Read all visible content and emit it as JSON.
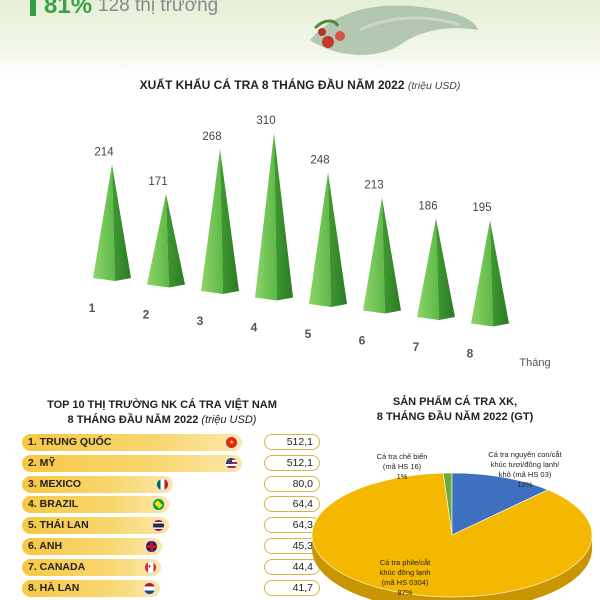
{
  "header": {
    "stat_percent": "81%",
    "stat_text": "128 thị trường"
  },
  "chart_data": [
    {
      "type": "bar",
      "title": "XUẤT KHẨU CÁ TRA 8 THÁNG ĐẦU NĂM 2022",
      "title_unit": "(triệu USD)",
      "categories": [
        "1",
        "2",
        "3",
        "4",
        "5",
        "6",
        "7",
        "8"
      ],
      "values": [
        214,
        171,
        268,
        310,
        248,
        213,
        186,
        195
      ],
      "xlabel": "Tháng",
      "ylabel": "",
      "ylim": [
        0,
        320
      ],
      "grid": false,
      "color": "#5fb84a"
    },
    {
      "type": "bar",
      "title": "TOP 10 THỊ TRƯỜNG NK CÁ TRA VIỆT NAM",
      "title_line2": "8 THÁNG ĐẦU NĂM 2022",
      "title_unit": "(triệu USD)",
      "categories": [
        "1. TRUNG QUỐC",
        "2. MỸ",
        "3. MEXICO",
        "4. BRAZIL",
        "5. THÁI LAN",
        "6. ANH",
        "7. CANADA",
        "8. HÀ LAN"
      ],
      "values": [
        512.1,
        512.1,
        80.0,
        64.4,
        64.3,
        45.3,
        44.4,
        41.7
      ],
      "value_labels": [
        "512,1",
        "512,1",
        "80,0",
        "64,4",
        "64,3",
        "45,3",
        "44,4",
        "41,7"
      ],
      "color": "#f6c843"
    },
    {
      "type": "pie",
      "title": "SẢN PHẨM CÁ TRA XK,",
      "title_line2": "8 THÁNG ĐẦU NĂM 2022 (GT)",
      "slices": [
        {
          "label_line1": "Cá tra phile/cắt",
          "label_line2": "khúc đông lạnh",
          "label_line3": "(mã HS 0304)",
          "pct_label": "87%",
          "value": 87,
          "color": "#f5b800"
        },
        {
          "label_line1": "Cá tra nguyên con/cắt",
          "label_line2": "khúc tươi/đông lạnh/",
          "label_line3": "khô (mã HS 03)",
          "pct_label": "12%",
          "value": 12,
          "color": "#3f6fbf"
        },
        {
          "label_line1": "Cá tra chế biến",
          "label_line2": "(mã HS 16)",
          "label_line3": "",
          "pct_label": "1%",
          "value": 1,
          "color": "#6aaa3a"
        }
      ]
    }
  ]
}
